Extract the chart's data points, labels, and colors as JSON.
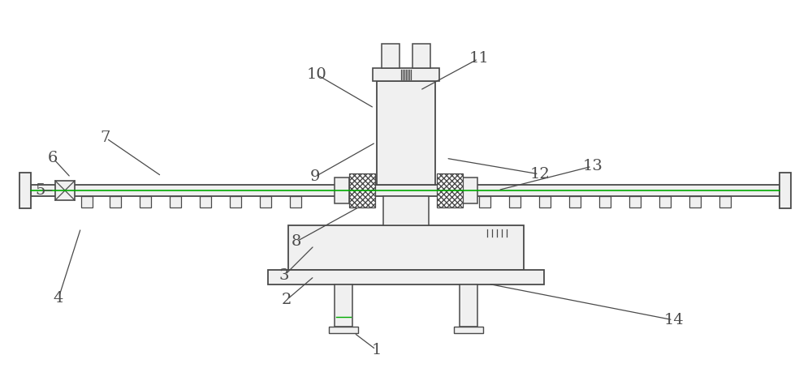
{
  "bg_color": "#ffffff",
  "lc": "#4a4a4a",
  "gc": "#00aa00",
  "figure_size": [
    10.0,
    4.75
  ],
  "dpi": 100,
  "label_fs": 14
}
